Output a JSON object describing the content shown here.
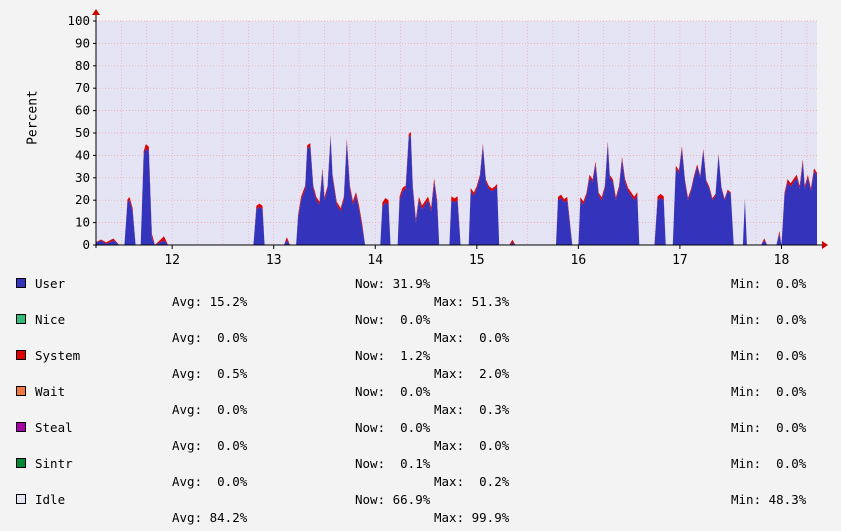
{
  "chart_data": {
    "type": "area",
    "ylabel": "Percent",
    "ylim": [
      0,
      100
    ],
    "yticks": [
      0,
      10,
      20,
      30,
      40,
      50,
      60,
      70,
      80,
      90,
      100
    ],
    "xlim": [
      11.25,
      18.35
    ],
    "xticks": [
      "12",
      "13",
      "14",
      "15",
      "16",
      "17",
      "18"
    ],
    "grid": true,
    "colors": {
      "background": "#e4e4f4",
      "grid": "#f4a0a0",
      "user": "#3333bb",
      "system": "#dd0000",
      "axis": "#cc0000"
    },
    "series": [
      {
        "name": "User",
        "points": [
          [
            11.25,
            1
          ],
          [
            11.3,
            2
          ],
          [
            11.35,
            0.5
          ],
          [
            11.42,
            2
          ],
          [
            11.48,
            0
          ],
          [
            11.53,
            0
          ],
          [
            11.56,
            19
          ],
          [
            11.58,
            20
          ],
          [
            11.61,
            15
          ],
          [
            11.64,
            0
          ],
          [
            11.69,
            0
          ],
          [
            11.72,
            40
          ],
          [
            11.74,
            43
          ],
          [
            11.77,
            42
          ],
          [
            11.8,
            3
          ],
          [
            11.83,
            0
          ],
          [
            11.92,
            2
          ],
          [
            11.96,
            0
          ],
          [
            12.8,
            0
          ],
          [
            12.83,
            16
          ],
          [
            12.86,
            17
          ],
          [
            12.89,
            16
          ],
          [
            12.91,
            0
          ],
          [
            13.1,
            0
          ],
          [
            13.13,
            2
          ],
          [
            13.16,
            0
          ],
          [
            13.22,
            0
          ],
          [
            13.24,
            12
          ],
          [
            13.27,
            20
          ],
          [
            13.31,
            25
          ],
          [
            13.33,
            43
          ],
          [
            13.36,
            44
          ],
          [
            13.39,
            25
          ],
          [
            13.42,
            20
          ],
          [
            13.45,
            18
          ],
          [
            13.48,
            33
          ],
          [
            13.5,
            20
          ],
          [
            13.53,
            25
          ],
          [
            13.56,
            48
          ],
          [
            13.58,
            30
          ],
          [
            13.62,
            18
          ],
          [
            13.66,
            15
          ],
          [
            13.69,
            20
          ],
          [
            13.72,
            46
          ],
          [
            13.75,
            25
          ],
          [
            13.78,
            18
          ],
          [
            13.81,
            22
          ],
          [
            13.84,
            16
          ],
          [
            13.87,
            8
          ],
          [
            13.9,
            0
          ],
          [
            14.05,
            0
          ],
          [
            14.07,
            17
          ],
          [
            14.1,
            19
          ],
          [
            14.13,
            18
          ],
          [
            14.15,
            0
          ],
          [
            14.22,
            0
          ],
          [
            14.24,
            20
          ],
          [
            14.27,
            24
          ],
          [
            14.3,
            25
          ],
          [
            14.33,
            48
          ],
          [
            14.35,
            49
          ],
          [
            14.37,
            25
          ],
          [
            14.4,
            10
          ],
          [
            14.43,
            20
          ],
          [
            14.46,
            16
          ],
          [
            14.49,
            18
          ],
          [
            14.52,
            20
          ],
          [
            14.55,
            15
          ],
          [
            14.58,
            28
          ],
          [
            14.61,
            18
          ],
          [
            14.63,
            0
          ],
          [
            14.73,
            0
          ],
          [
            14.75,
            20
          ],
          [
            14.78,
            19
          ],
          [
            14.81,
            20
          ],
          [
            14.84,
            0
          ],
          [
            14.92,
            0
          ],
          [
            14.94,
            24
          ],
          [
            14.97,
            22
          ],
          [
            15.0,
            25
          ],
          [
            15.03,
            30
          ],
          [
            15.06,
            44
          ],
          [
            15.09,
            28
          ],
          [
            15.12,
            25
          ],
          [
            15.15,
            24
          ],
          [
            15.18,
            25
          ],
          [
            15.2,
            26
          ],
          [
            15.22,
            0
          ],
          [
            15.32,
            0
          ],
          [
            15.35,
            1
          ],
          [
            15.38,
            0
          ],
          [
            15.78,
            0
          ],
          [
            15.8,
            20
          ],
          [
            15.83,
            21
          ],
          [
            15.86,
            19
          ],
          [
            15.89,
            20
          ],
          [
            15.91,
            12
          ],
          [
            15.94,
            0
          ],
          [
            16.0,
            0
          ],
          [
            16.02,
            20
          ],
          [
            16.05,
            18
          ],
          [
            16.08,
            22
          ],
          [
            16.11,
            30
          ],
          [
            16.14,
            28
          ],
          [
            16.17,
            36
          ],
          [
            16.2,
            22
          ],
          [
            16.23,
            20
          ],
          [
            16.26,
            25
          ],
          [
            16.29,
            45
          ],
          [
            16.31,
            30
          ],
          [
            16.34,
            28
          ],
          [
            16.37,
            20
          ],
          [
            16.4,
            25
          ],
          [
            16.43,
            38
          ],
          [
            16.46,
            28
          ],
          [
            16.49,
            24
          ],
          [
            16.52,
            22
          ],
          [
            16.55,
            20
          ],
          [
            16.58,
            22
          ],
          [
            16.6,
            0
          ],
          [
            16.75,
            0
          ],
          [
            16.78,
            20
          ],
          [
            16.81,
            21
          ],
          [
            16.84,
            20
          ],
          [
            16.86,
            0
          ],
          [
            16.93,
            0
          ],
          [
            16.96,
            34
          ],
          [
            16.99,
            32
          ],
          [
            17.02,
            43
          ],
          [
            17.05,
            28
          ],
          [
            17.08,
            20
          ],
          [
            17.11,
            24
          ],
          [
            17.14,
            30
          ],
          [
            17.17,
            35
          ],
          [
            17.2,
            30
          ],
          [
            17.23,
            42
          ],
          [
            17.26,
            28
          ],
          [
            17.29,
            25
          ],
          [
            17.32,
            20
          ],
          [
            17.35,
            22
          ],
          [
            17.38,
            40
          ],
          [
            17.41,
            25
          ],
          [
            17.44,
            20
          ],
          [
            17.47,
            24
          ],
          [
            17.5,
            23
          ],
          [
            17.53,
            0
          ],
          [
            17.62,
            0
          ],
          [
            17.64,
            20
          ],
          [
            17.66,
            0
          ],
          [
            17.8,
            0
          ],
          [
            17.83,
            2
          ],
          [
            17.86,
            0
          ],
          [
            17.95,
            0
          ],
          [
            17.98,
            5
          ],
          [
            18.0,
            0
          ],
          [
            18.03,
            22
          ],
          [
            18.06,
            28
          ],
          [
            18.09,
            26
          ],
          [
            18.12,
            28
          ],
          [
            18.15,
            30
          ],
          [
            18.18,
            25
          ],
          [
            18.21,
            37
          ],
          [
            18.23,
            25
          ],
          [
            18.26,
            30
          ],
          [
            18.29,
            24
          ],
          [
            18.32,
            33
          ],
          [
            18.35,
            31
          ]
        ]
      },
      {
        "name": "System",
        "points": [
          [
            11.25,
            0.3
          ],
          [
            11.6,
            1.5
          ],
          [
            11.75,
            2
          ],
          [
            12.85,
            1.5
          ],
          [
            13.35,
            1.5
          ],
          [
            13.55,
            1.2
          ],
          [
            13.72,
            1.5
          ],
          [
            14.1,
            2
          ],
          [
            14.33,
            1.5
          ],
          [
            14.78,
            1.8
          ],
          [
            15.06,
            1.2
          ],
          [
            15.83,
            1.5
          ],
          [
            16.29,
            1.2
          ],
          [
            16.8,
            1.8
          ],
          [
            17.02,
            1.2
          ],
          [
            17.6,
            0.5
          ],
          [
            18.1,
            1.5
          ],
          [
            18.35,
            1.2
          ]
        ]
      }
    ]
  },
  "legend": [
    {
      "name": "User",
      "color": "#3333bb",
      "now": "Now: 31.9%",
      "avg": "Avg: 15.2%",
      "max": "Max: 51.3%",
      "min": "Min:  0.0%"
    },
    {
      "name": "Nice",
      "color": "#33bb77",
      "now": "Now:  0.0%",
      "avg": "Avg:  0.0%",
      "max": "Max:  0.0%",
      "min": "Min:  0.0%"
    },
    {
      "name": "System",
      "color": "#dd0000",
      "now": "Now:  1.2%",
      "avg": "Avg:  0.5%",
      "max": "Max:  2.0%",
      "min": "Min:  0.0%"
    },
    {
      "name": "Wait",
      "color": "#ee7744",
      "now": "Now:  0.0%",
      "avg": "Avg:  0.0%",
      "max": "Max:  0.3%",
      "min": "Min:  0.0%"
    },
    {
      "name": "Steal",
      "color": "#aa00aa",
      "now": "Now:  0.0%",
      "avg": "Avg:  0.0%",
      "max": "Max:  0.0%",
      "min": "Min:  0.0%"
    },
    {
      "name": "Sintr",
      "color": "#008833",
      "now": "Now:  0.1%",
      "avg": "Avg:  0.0%",
      "max": "Max:  0.2%",
      "min": "Min:  0.0%"
    },
    {
      "name": "Idle",
      "color": "#e4e4f4",
      "now": "Now: 66.9%",
      "avg": "Avg: 84.2%",
      "max": "Max: 99.9%",
      "min": "Min: 48.3%"
    }
  ]
}
